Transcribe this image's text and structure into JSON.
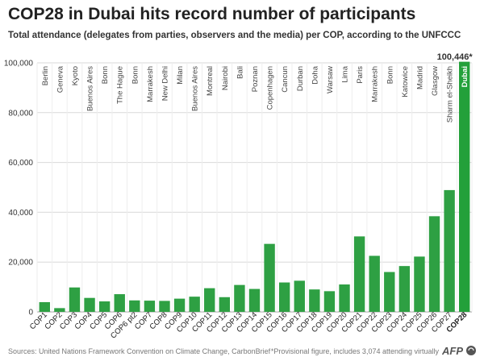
{
  "title": "COP28 in Dubai hits record number of participants",
  "subtitle": "Total attendance (delegates from parties, observers and the media) per COP, according to the UNFCCC",
  "source": "Sources: United Nations Framework Convention on Climate Change, CarbonBrief",
  "footnote": "*Provisional figure, includes 3,074 attending virtually",
  "logo": "AFP",
  "colors": {
    "bar": "#2ea043",
    "highlight_bar": "#23a03a",
    "text": "#222222",
    "grid": "#d9d9d9"
  },
  "chart_data": {
    "type": "bar",
    "title": "COP28 in Dubai hits record number of participants",
    "subtitle": "Total attendance (delegates from parties, observers and the media) per COP, according to the UNFCCC",
    "xlabel": "",
    "ylabel": "",
    "ylim": [
      0,
      100000
    ],
    "yticks": [
      0,
      20000,
      40000,
      60000,
      80000,
      100000
    ],
    "ytick_labels": [
      "0",
      "20,000",
      "40,000",
      "60,000",
      "80,000",
      "100,000"
    ],
    "grid": true,
    "categories": [
      "COP1",
      "COP2",
      "COP3",
      "COP4",
      "COP5",
      "COP6",
      "COP6 pt2",
      "COP7",
      "COP8",
      "COP9",
      "COP10",
      "COP11",
      "COP12",
      "COP13",
      "COP14",
      "COP15",
      "COP16",
      "COP17",
      "COP18",
      "COP19",
      "COP20",
      "COP21",
      "COP22",
      "COP23",
      "COP24",
      "COP25",
      "COP26",
      "COP27",
      "COP28"
    ],
    "cities": [
      "Berlin",
      "Geneva",
      "Kyoto",
      "Buenos Aires",
      "Bonn",
      "The Hague",
      "Bonn",
      "Marrakesh",
      "New Delhi",
      "Milan",
      "Buenos Aires",
      "Montreal",
      "Nairobi",
      "Bali",
      "Poznan",
      "Copenhagen",
      "Cancun",
      "Durban",
      "Doha",
      "Warsaw",
      "Lima",
      "Paris",
      "Marrakesh",
      "Bonn",
      "Katowice",
      "Madrid",
      "Glasgow",
      "Sharm el-Sheikh",
      "Dubai"
    ],
    "values": [
      3900,
      1500,
      9800,
      5600,
      4200,
      7100,
      4600,
      4500,
      4400,
      5300,
      6100,
      9500,
      5900,
      10800,
      9200,
      27300,
      11800,
      12500,
      9000,
      8300,
      11000,
      30300,
      22500,
      16000,
      18400,
      22200,
      38400,
      48900,
      100446
    ],
    "annotations": [
      {
        "category": "COP28",
        "text": "100,446*"
      }
    ],
    "highlight": "COP28"
  }
}
